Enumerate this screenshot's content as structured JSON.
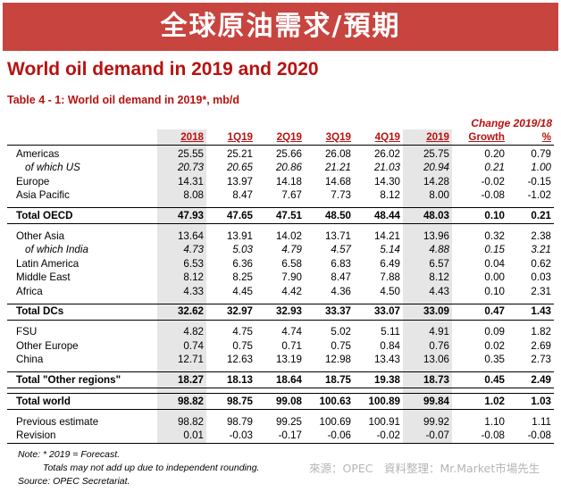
{
  "banner": "全球原油需求/預期",
  "main_title": "World oil demand in 2019 and 2020",
  "table_title": "Table 4 - 1: World oil demand in 2019*, mb/d",
  "change_title": "Change 2019/18",
  "columns": [
    "2018",
    "1Q19",
    "2Q19",
    "3Q19",
    "4Q19",
    "2019",
    "Growth",
    "%"
  ],
  "rows": {
    "americas": {
      "label": "Americas",
      "values": [
        "25.55",
        "25.21",
        "25.66",
        "26.08",
        "26.02",
        "25.75",
        "0.20",
        "0.79"
      ]
    },
    "us": {
      "label": "of which US",
      "values": [
        "20.73",
        "20.65",
        "20.86",
        "21.21",
        "21.03",
        "20.94",
        "0.21",
        "1.00"
      ]
    },
    "europe": {
      "label": "Europe",
      "values": [
        "14.31",
        "13.97",
        "14.18",
        "14.68",
        "14.30",
        "14.28",
        "-0.02",
        "-0.15"
      ]
    },
    "asia_pacific": {
      "label": "Asia Pacific",
      "values": [
        "8.08",
        "8.47",
        "7.67",
        "7.73",
        "8.12",
        "8.00",
        "-0.08",
        "-1.02"
      ]
    },
    "total_oecd": {
      "label": "Total OECD",
      "values": [
        "47.93",
        "47.65",
        "47.51",
        "48.50",
        "48.44",
        "48.03",
        "0.10",
        "0.21"
      ]
    },
    "other_asia": {
      "label": "Other Asia",
      "values": [
        "13.64",
        "13.91",
        "14.02",
        "13.71",
        "14.21",
        "13.96",
        "0.32",
        "2.38"
      ]
    },
    "india": {
      "label": "of which India",
      "values": [
        "4.73",
        "5.03",
        "4.79",
        "4.57",
        "5.14",
        "4.88",
        "0.15",
        "3.21"
      ]
    },
    "latin_america": {
      "label": "Latin America",
      "values": [
        "6.53",
        "6.36",
        "6.58",
        "6.83",
        "6.49",
        "6.57",
        "0.04",
        "0.62"
      ]
    },
    "middle_east": {
      "label": "Middle East",
      "values": [
        "8.12",
        "8.25",
        "7.90",
        "8.47",
        "7.88",
        "8.12",
        "0.00",
        "0.03"
      ]
    },
    "africa": {
      "label": "Africa",
      "values": [
        "4.33",
        "4.45",
        "4.42",
        "4.36",
        "4.50",
        "4.43",
        "0.10",
        "2.31"
      ]
    },
    "total_dcs": {
      "label": "Total DCs",
      "values": [
        "32.62",
        "32.97",
        "32.93",
        "33.37",
        "33.07",
        "33.09",
        "0.47",
        "1.43"
      ]
    },
    "fsu": {
      "label": "FSU",
      "values": [
        "4.82",
        "4.75",
        "4.74",
        "5.02",
        "5.11",
        "4.91",
        "0.09",
        "1.82"
      ]
    },
    "other_europe": {
      "label": "Other Europe",
      "values": [
        "0.74",
        "0.75",
        "0.71",
        "0.75",
        "0.84",
        "0.76",
        "0.02",
        "2.69"
      ]
    },
    "china": {
      "label": "China",
      "values": [
        "12.71",
        "12.63",
        "13.19",
        "12.98",
        "13.43",
        "13.06",
        "0.35",
        "2.73"
      ]
    },
    "total_other": {
      "label": "Total \"Other regions\"",
      "values": [
        "18.27",
        "18.13",
        "18.64",
        "18.75",
        "19.38",
        "18.73",
        "0.45",
        "2.49"
      ]
    },
    "total_world": {
      "label": "Total world",
      "values": [
        "98.82",
        "98.75",
        "99.08",
        "100.63",
        "100.89",
        "99.84",
        "1.02",
        "1.03"
      ]
    },
    "previous": {
      "label": "Previous estimate",
      "values": [
        "98.82",
        "98.79",
        "99.25",
        "100.69",
        "100.91",
        "99.92",
        "1.10",
        "1.11"
      ]
    },
    "revision": {
      "label": "Revision",
      "values": [
        "0.01",
        "-0.03",
        "-0.17",
        "-0.06",
        "-0.02",
        "-0.07",
        "-0.08",
        "-0.08"
      ]
    }
  },
  "notes": {
    "note1": "Note: * 2019 = Forecast.",
    "note2": "Totals may not add up due to independent rounding.",
    "note3": "Source: OPEC Secretariat."
  },
  "source_credit": "來源：OPEC　資料整理：Mr.Market市場先生",
  "colors": {
    "banner": "#c8443f",
    "title_red": "#b8120f",
    "shade": "#e6e6e6"
  }
}
